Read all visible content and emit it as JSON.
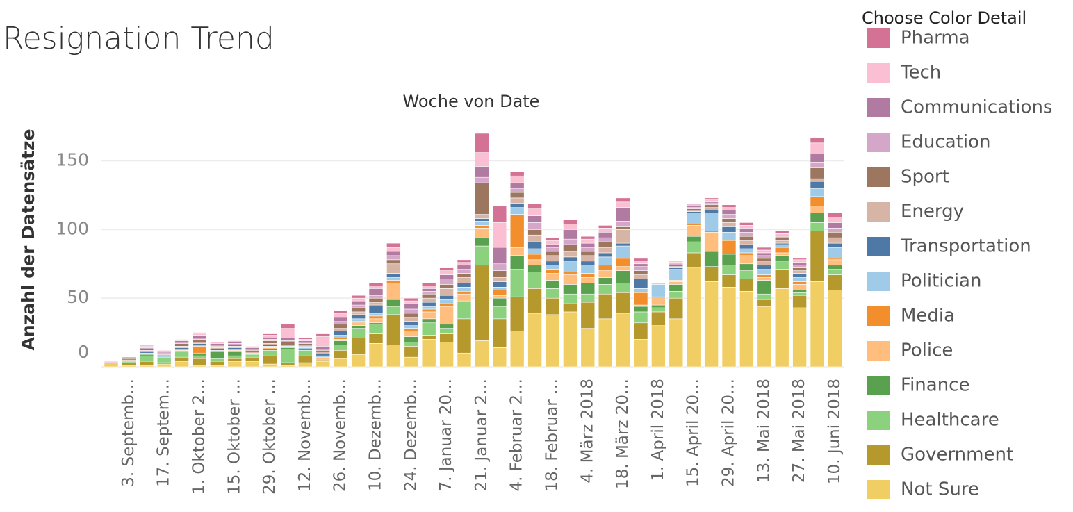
{
  "chart_data": {
    "type": "stacked_bar",
    "title": "Resignation Trend",
    "x_header": "Woche von Date",
    "y_label": "Anzahl der Datensätze",
    "legend_title": "Choose Color Detail",
    "categories": [
      null,
      "3. Septemb…",
      null,
      "17. Septem…",
      null,
      "1. Oktober 2…",
      null,
      "15. Oktober …",
      null,
      "29. Oktober …",
      null,
      "12. Novemb…",
      null,
      "26. Novemb…",
      null,
      "10. Dezemb…",
      null,
      "24. Dezemb…",
      null,
      "7. Januar 20…",
      null,
      "21. Januar 2…",
      null,
      "4. Februar 2…",
      null,
      "18. Februar …",
      null,
      "4. März 2018",
      null,
      "18. März 20…",
      null,
      "1. April 2018",
      null,
      "15. April 20…",
      null,
      "29. April 20…",
      null,
      "13. Mai 2018",
      null,
      "27. Mai 2018",
      null,
      "10. Juni 2018"
    ],
    "ylim": [
      0,
      172
    ],
    "yticks": [
      0,
      50,
      100,
      150
    ],
    "grid": true,
    "legend": "right",
    "series": [
      {
        "name": "Not Sure",
        "color": "#f1ce63",
        "values": [
          3,
          1,
          1,
          2,
          4,
          1,
          1,
          4,
          4,
          2,
          1,
          3,
          4,
          6,
          9,
          17,
          16,
          7,
          20,
          18,
          10,
          19,
          14,
          26,
          39,
          38,
          40,
          28,
          35,
          39,
          20,
          30,
          35,
          72,
          62,
          58,
          55,
          44,
          57,
          43,
          62,
          56
        ]
      },
      {
        "name": "Government",
        "color": "#b6992d",
        "values": [
          0,
          2,
          3,
          1,
          3,
          5,
          3,
          2,
          3,
          6,
          2,
          5,
          1,
          6,
          12,
          7,
          22,
          8,
          3,
          6,
          25,
          55,
          21,
          25,
          18,
          12,
          6,
          19,
          18,
          15,
          12,
          10,
          15,
          11,
          11,
          9,
          9,
          5,
          14,
          9,
          37,
          11
        ]
      },
      {
        "name": "Healthcare",
        "color": "#8cd17d",
        "values": [
          0,
          1,
          4,
          4,
          4,
          2,
          2,
          2,
          2,
          4,
          10,
          4,
          0,
          4,
          7,
          7,
          6,
          3,
          9,
          4,
          13,
          14,
          9,
          20,
          12,
          7,
          7,
          6,
          7,
          7,
          8,
          3,
          5,
          8,
          0,
          7,
          6,
          4,
          6,
          2,
          6,
          4
        ]
      },
      {
        "name": "Finance",
        "color": "#59a14f",
        "values": [
          0,
          0,
          1,
          0,
          0,
          2,
          5,
          3,
          0,
          1,
          1,
          1,
          0,
          3,
          2,
          1,
          5,
          4,
          3,
          3,
          0,
          6,
          6,
          10,
          5,
          6,
          7,
          8,
          5,
          9,
          4,
          2,
          5,
          4,
          11,
          8,
          5,
          10,
          4,
          2,
          7,
          3
        ]
      },
      {
        "name": "Police",
        "color": "#ffbe7d",
        "values": [
          0,
          0,
          0,
          0,
          1,
          0,
          0,
          1,
          1,
          1,
          0,
          0,
          2,
          1,
          2,
          3,
          12,
          4,
          5,
          13,
          5,
          7,
          2,
          6,
          4,
          5,
          7,
          4,
          5,
          3,
          1,
          6,
          2,
          8,
          14,
          0,
          6,
          2,
          2,
          4,
          5,
          4
        ]
      },
      {
        "name": "Media",
        "color": "#f28e2b",
        "values": [
          0,
          0,
          0,
          0,
          0,
          5,
          0,
          0,
          0,
          0,
          0,
          0,
          0,
          1,
          1,
          2,
          2,
          2,
          2,
          2,
          2,
          2,
          4,
          24,
          4,
          3,
          2,
          3,
          4,
          6,
          9,
          0,
          1,
          1,
          1,
          10,
          2,
          2,
          4,
          2,
          7,
          1
        ]
      },
      {
        "name": "Politician",
        "color": "#a0cbe8",
        "values": [
          0,
          0,
          1,
          1,
          1,
          1,
          1,
          1,
          0,
          1,
          1,
          1,
          1,
          2,
          2,
          2,
          2,
          2,
          2,
          3,
          3,
          3,
          2,
          5,
          4,
          3,
          8,
          6,
          6,
          9,
          3,
          9,
          8,
          8,
          13,
          6,
          3,
          4,
          2,
          3,
          6,
          8
        ]
      },
      {
        "name": "Transportation",
        "color": "#4e79a7",
        "values": [
          0,
          0,
          1,
          0,
          1,
          1,
          1,
          1,
          0,
          1,
          0,
          1,
          2,
          3,
          3,
          6,
          3,
          3,
          3,
          3,
          3,
          2,
          4,
          3,
          5,
          3,
          3,
          3,
          3,
          2,
          7,
          0,
          1,
          1,
          2,
          4,
          3,
          3,
          1,
          3,
          5,
          3
        ]
      },
      {
        "name": "Energy",
        "color": "#d7b5a6",
        "values": [
          0,
          1,
          1,
          1,
          1,
          1,
          1,
          1,
          1,
          1,
          1,
          1,
          1,
          2,
          2,
          2,
          7,
          3,
          3,
          5,
          4,
          3,
          3,
          4,
          5,
          4,
          4,
          4,
          4,
          10,
          3,
          0,
          1,
          1,
          2,
          3,
          3,
          3,
          2,
          2,
          2,
          4
        ]
      },
      {
        "name": "Sport",
        "color": "#9d7660",
        "values": [
          0,
          1,
          1,
          1,
          2,
          2,
          1,
          1,
          1,
          2,
          2,
          1,
          1,
          3,
          3,
          3,
          3,
          3,
          3,
          3,
          3,
          23,
          5,
          4,
          4,
          3,
          5,
          3,
          4,
          2,
          3,
          0,
          1,
          1,
          2,
          3,
          3,
          2,
          2,
          2,
          8,
          4
        ]
      },
      {
        "name": "Education",
        "color": "#d4a6c8",
        "values": [
          0,
          0,
          1,
          1,
          1,
          1,
          1,
          1,
          1,
          1,
          1,
          1,
          1,
          2,
          2,
          2,
          3,
          3,
          2,
          4,
          3,
          4,
          5,
          3,
          5,
          3,
          4,
          3,
          3,
          4,
          3,
          0,
          1,
          1,
          1,
          3,
          3,
          2,
          1,
          2,
          4,
          3
        ]
      },
      {
        "name": "Communications",
        "color": "#b07aa1",
        "values": [
          0,
          1,
          1,
          0,
          1,
          2,
          1,
          1,
          1,
          1,
          2,
          1,
          2,
          3,
          3,
          5,
          3,
          4,
          2,
          3,
          3,
          8,
          12,
          4,
          5,
          2,
          7,
          3,
          4,
          10,
          2,
          0,
          1,
          1,
          1,
          3,
          3,
          2,
          1,
          2,
          6,
          4
        ]
      },
      {
        "name": "Tech",
        "color": "#fabfd2",
        "values": [
          1,
          0,
          1,
          1,
          1,
          1,
          1,
          1,
          1,
          2,
          7,
          1,
          7,
          3,
          2,
          2,
          3,
          2,
          2,
          3,
          2,
          10,
          18,
          5,
          5,
          3,
          4,
          3,
          3,
          4,
          2,
          1,
          1,
          1,
          2,
          2,
          2,
          2,
          1,
          2,
          8,
          4
        ]
      },
      {
        "name": "Pharma",
        "color": "#d37295",
        "values": [
          0,
          0,
          0,
          0,
          0,
          1,
          0,
          0,
          0,
          1,
          3,
          1,
          2,
          2,
          2,
          2,
          3,
          2,
          2,
          2,
          2,
          14,
          12,
          3,
          4,
          2,
          3,
          2,
          2,
          3,
          2,
          0,
          0,
          1,
          1,
          2,
          2,
          2,
          2,
          1,
          4,
          3
        ]
      }
    ]
  }
}
